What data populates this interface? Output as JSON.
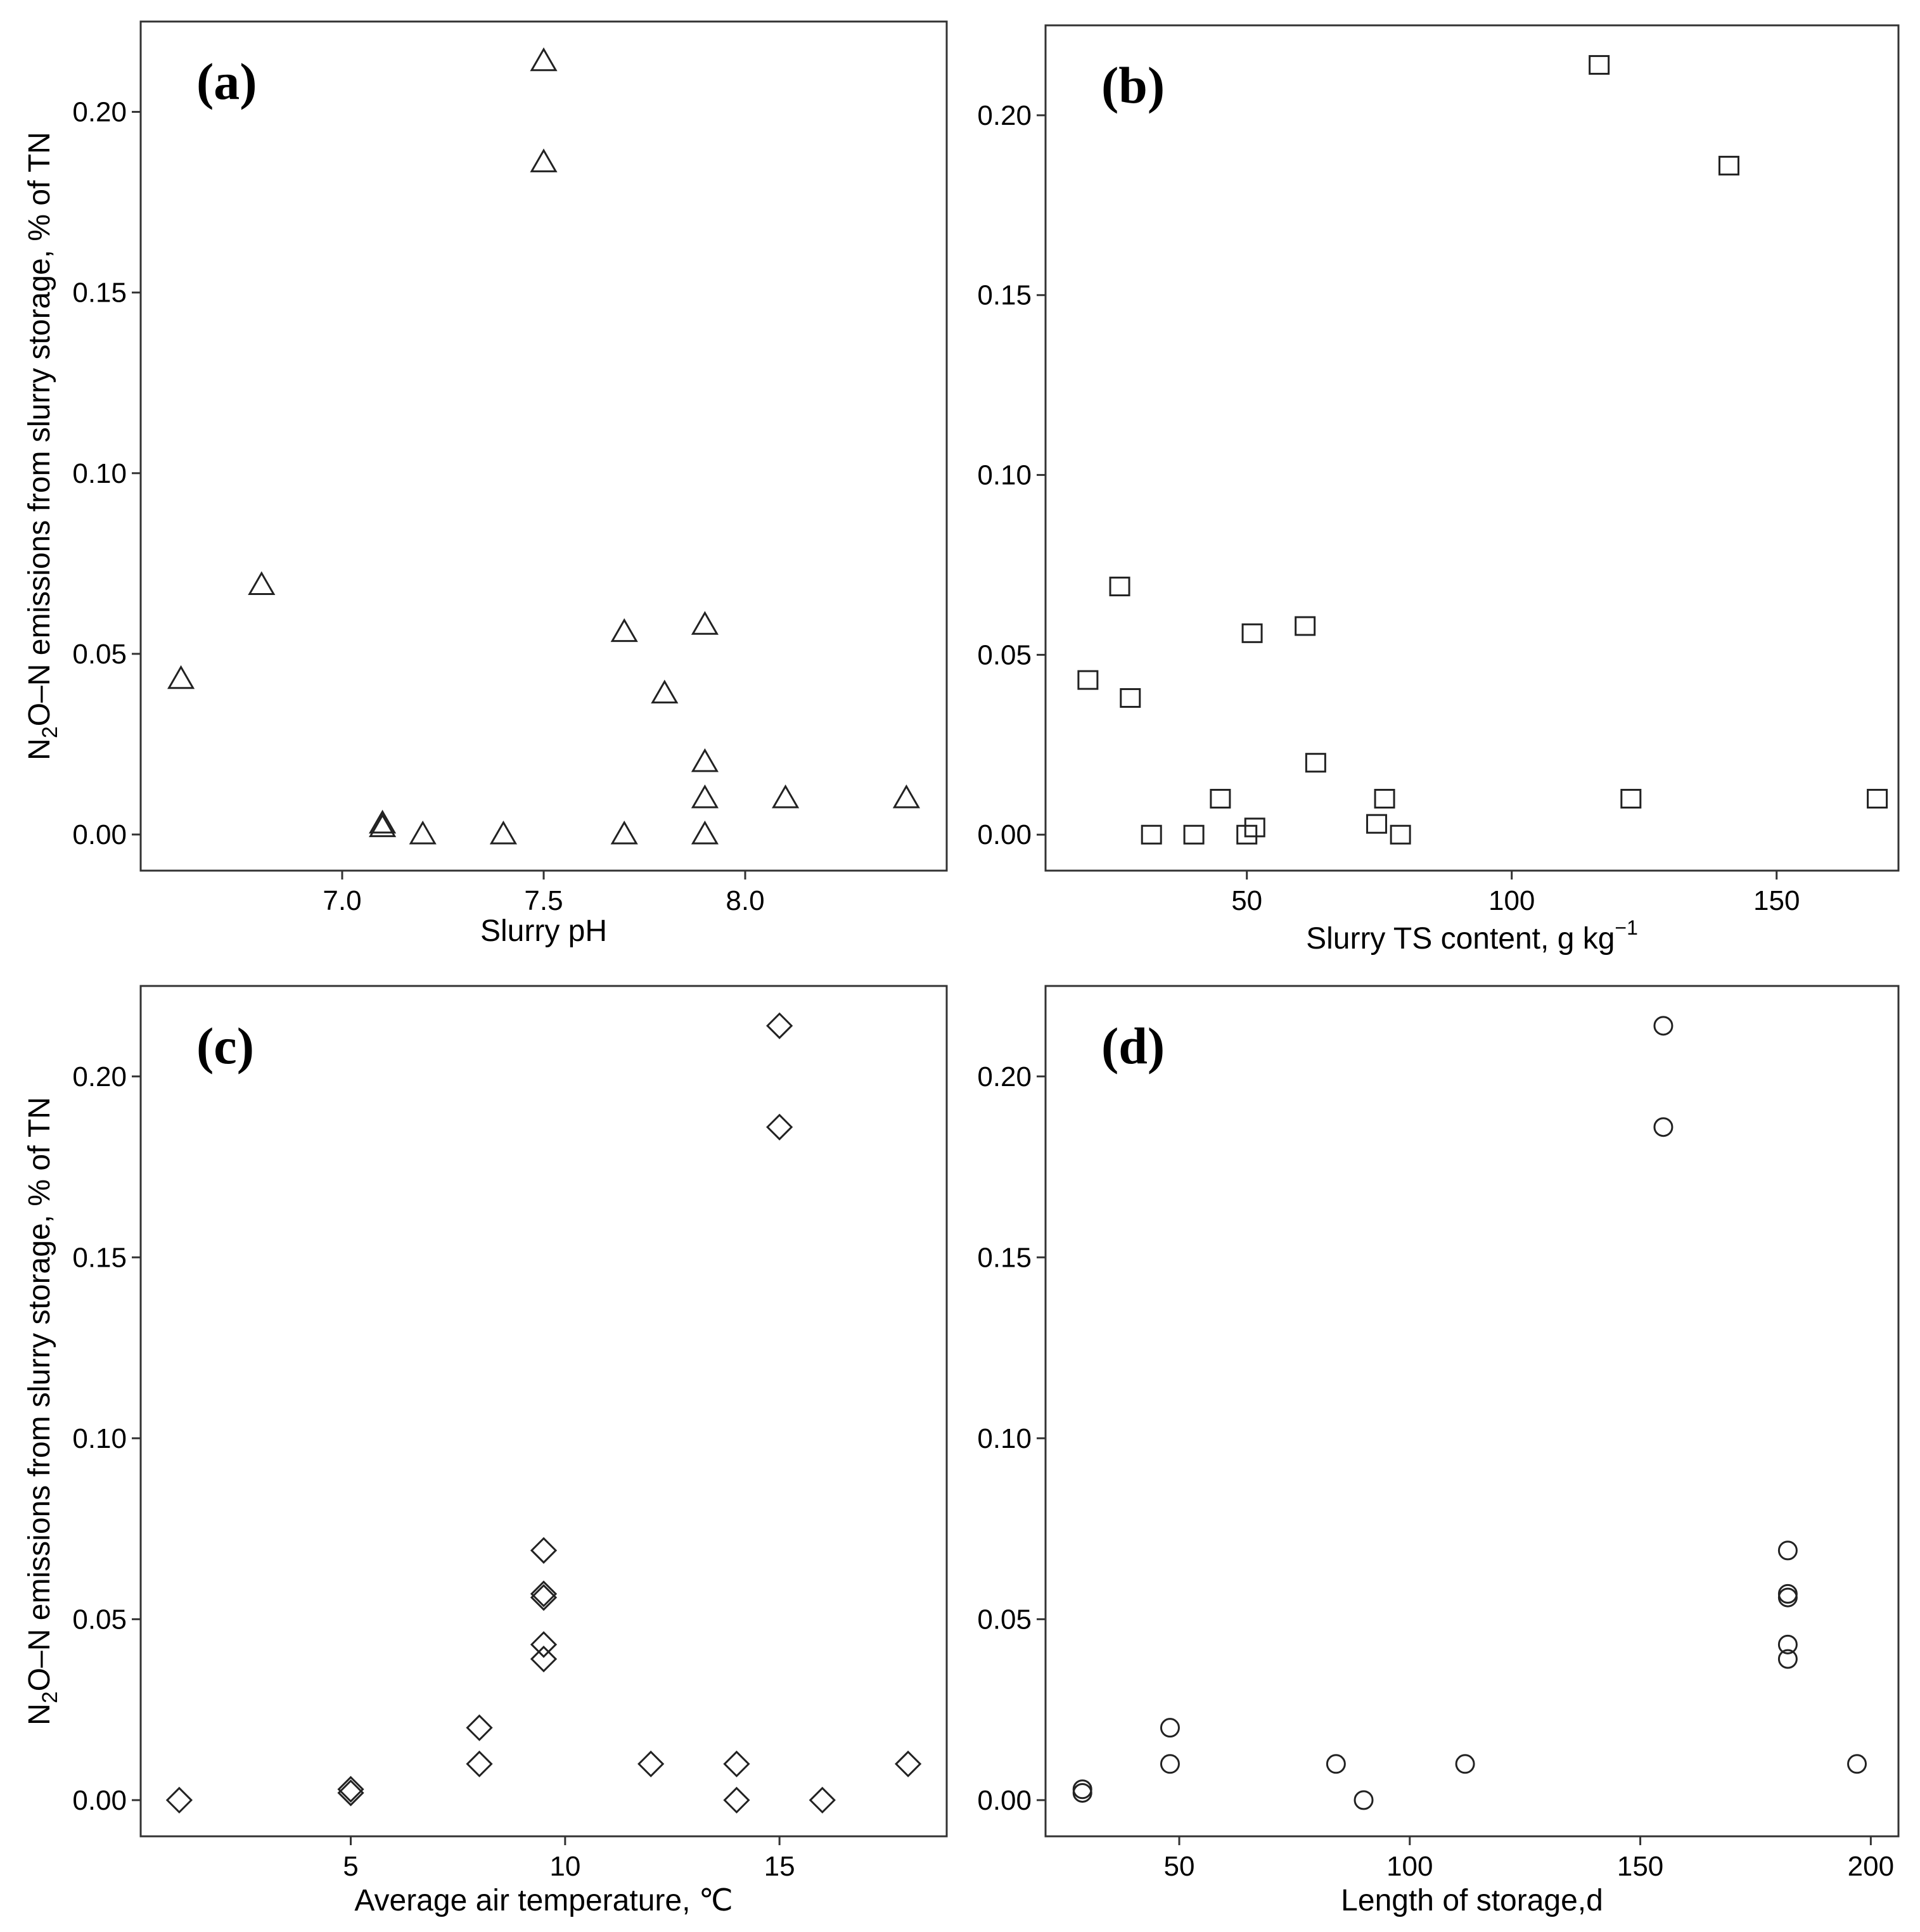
{
  "chart_data": [
    {
      "type": "scatter",
      "panel_label": "(a)",
      "marker": "triangle",
      "xlabel": "Slurry pH",
      "ylabel": "N2O–N emissions from slurry storage, % of TN",
      "ylabel_parts": [
        "N",
        "2",
        "O–N emissions from slurry storage, % of TN"
      ],
      "xlim": [
        6.5,
        8.5
      ],
      "ylim": [
        -0.01,
        0.225
      ],
      "xticks": [
        7.0,
        7.5,
        8.0
      ],
      "xtick_labels": [
        "7.0",
        "7.5",
        "8.0"
      ],
      "yticks": [
        0.0,
        0.05,
        0.1,
        0.15,
        0.2
      ],
      "ytick_labels": [
        "0.00",
        "0.05",
        "0.10",
        "0.15",
        "0.20"
      ],
      "points": [
        {
          "x": 6.6,
          "y": 0.043
        },
        {
          "x": 6.8,
          "y": 0.069
        },
        {
          "x": 7.1,
          "y": 0.003
        },
        {
          "x": 7.1,
          "y": 0.002
        },
        {
          "x": 7.2,
          "y": 0.0
        },
        {
          "x": 7.4,
          "y": 0.0
        },
        {
          "x": 7.5,
          "y": 0.214
        },
        {
          "x": 7.5,
          "y": 0.186
        },
        {
          "x": 7.7,
          "y": 0.056
        },
        {
          "x": 7.7,
          "y": 0.0
        },
        {
          "x": 7.8,
          "y": 0.039
        },
        {
          "x": 7.9,
          "y": 0.058
        },
        {
          "x": 7.9,
          "y": 0.02
        },
        {
          "x": 7.9,
          "y": 0.01
        },
        {
          "x": 7.9,
          "y": 0.0
        },
        {
          "x": 8.1,
          "y": 0.01
        },
        {
          "x": 8.4,
          "y": 0.01
        }
      ]
    },
    {
      "type": "scatter",
      "panel_label": "(b)",
      "marker": "square",
      "xlabel": "Slurry TS content, g kg",
      "xlabel_sup": "−1",
      "xlim": [
        12,
        173
      ],
      "ylim": [
        -0.01,
        0.225
      ],
      "xticks": [
        50,
        100,
        150
      ],
      "xtick_labels": [
        "50",
        "100",
        "150"
      ],
      "yticks": [
        0.0,
        0.05,
        0.1,
        0.15,
        0.2
      ],
      "ytick_labels": [
        "0.00",
        "0.05",
        "0.10",
        "0.15",
        "0.20"
      ],
      "points": [
        {
          "x": 20,
          "y": 0.043
        },
        {
          "x": 26,
          "y": 0.069
        },
        {
          "x": 28,
          "y": 0.038
        },
        {
          "x": 32,
          "y": 0.0
        },
        {
          "x": 40,
          "y": 0.0
        },
        {
          "x": 45,
          "y": 0.01
        },
        {
          "x": 50,
          "y": 0.0
        },
        {
          "x": 51,
          "y": 0.056
        },
        {
          "x": 51.5,
          "y": 0.002
        },
        {
          "x": 61,
          "y": 0.058
        },
        {
          "x": 63,
          "y": 0.02
        },
        {
          "x": 74.5,
          "y": 0.003
        },
        {
          "x": 76,
          "y": 0.01
        },
        {
          "x": 79,
          "y": 0.0
        },
        {
          "x": 116.5,
          "y": 0.214
        },
        {
          "x": 122.5,
          "y": 0.01
        },
        {
          "x": 141,
          "y": 0.186
        },
        {
          "x": 169,
          "y": 0.01
        }
      ]
    },
    {
      "type": "scatter",
      "panel_label": "(c)",
      "marker": "diamond",
      "xlabel": "Average air temperature, ℃",
      "ylabel": "N2O–N emissions from slurry storage, % of TN",
      "ylabel_parts": [
        "N",
        "2",
        "O–N emissions from slurry storage, % of TN"
      ],
      "xlim": [
        0.1,
        18.9
      ],
      "ylim": [
        -0.01,
        0.225
      ],
      "xticks": [
        5,
        10,
        15
      ],
      "xtick_labels": [
        "5",
        "10",
        "15"
      ],
      "yticks": [
        0.0,
        0.05,
        0.1,
        0.15,
        0.2
      ],
      "ytick_labels": [
        "0.00",
        "0.05",
        "0.10",
        "0.15",
        "0.20"
      ],
      "points": [
        {
          "x": 1,
          "y": 0.0
        },
        {
          "x": 5,
          "y": 0.003
        },
        {
          "x": 5,
          "y": 0.002
        },
        {
          "x": 8,
          "y": 0.02
        },
        {
          "x": 8,
          "y": 0.01
        },
        {
          "x": 9.5,
          "y": 0.069
        },
        {
          "x": 9.5,
          "y": 0.057
        },
        {
          "x": 9.5,
          "y": 0.056
        },
        {
          "x": 9.5,
          "y": 0.043
        },
        {
          "x": 9.5,
          "y": 0.039
        },
        {
          "x": 12,
          "y": 0.01
        },
        {
          "x": 14,
          "y": 0.01
        },
        {
          "x": 14,
          "y": 0.0
        },
        {
          "x": 15,
          "y": 0.214
        },
        {
          "x": 15,
          "y": 0.186
        },
        {
          "x": 16,
          "y": 0.0
        },
        {
          "x": 18,
          "y": 0.01
        }
      ]
    },
    {
      "type": "scatter",
      "panel_label": "(d)",
      "marker": "circle",
      "xlabel": "Length of storage,d",
      "xlim": [
        21,
        206
      ],
      "ylim": [
        -0.01,
        0.225
      ],
      "xticks": [
        50,
        100,
        150,
        200
      ],
      "xtick_labels": [
        "50",
        "100",
        "150",
        "200"
      ],
      "yticks": [
        0.0,
        0.05,
        0.1,
        0.15,
        0.2
      ],
      "ytick_labels": [
        "0.00",
        "0.05",
        "0.10",
        "0.15",
        "0.20"
      ],
      "points": [
        {
          "x": 29,
          "y": 0.003
        },
        {
          "x": 29,
          "y": 0.002
        },
        {
          "x": 48,
          "y": 0.02
        },
        {
          "x": 48,
          "y": 0.01
        },
        {
          "x": 84,
          "y": 0.01
        },
        {
          "x": 90,
          "y": 0.0
        },
        {
          "x": 112,
          "y": 0.01
        },
        {
          "x": 155,
          "y": 0.214
        },
        {
          "x": 155,
          "y": 0.186
        },
        {
          "x": 182,
          "y": 0.069
        },
        {
          "x": 182,
          "y": 0.057
        },
        {
          "x": 182,
          "y": 0.056
        },
        {
          "x": 182,
          "y": 0.043
        },
        {
          "x": 182,
          "y": 0.039
        },
        {
          "x": 197,
          "y": 0.01
        }
      ]
    }
  ]
}
